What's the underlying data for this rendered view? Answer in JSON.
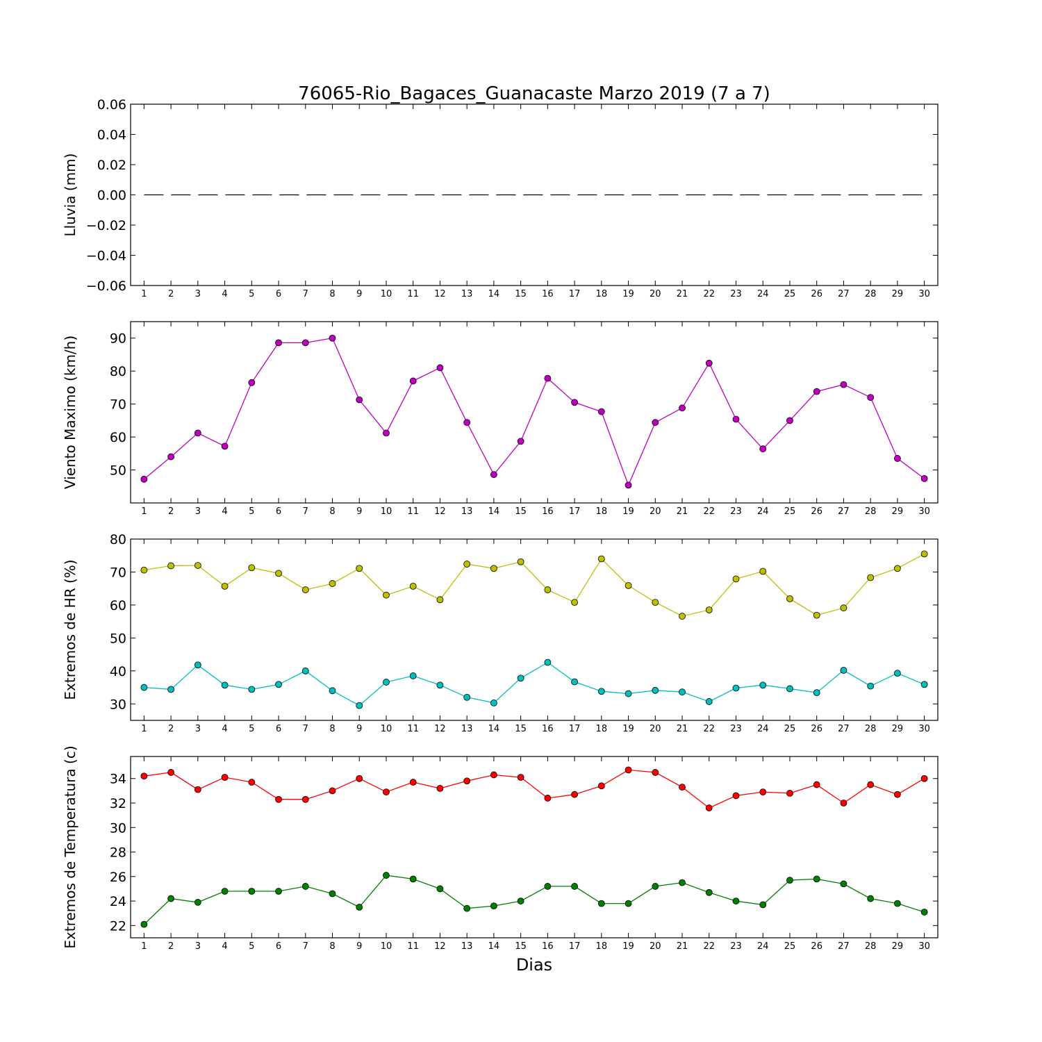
{
  "figure": {
    "title": "76065-Rio_Bagaces_Guanacaste Marzo 2019  (7 a 7)",
    "xlabel": "Dias"
  },
  "chart_data": [
    {
      "type": "line",
      "ylabel": "Lluvia (mm)",
      "x": [
        1,
        2,
        3,
        4,
        5,
        6,
        7,
        8,
        9,
        10,
        11,
        12,
        13,
        14,
        15,
        16,
        17,
        18,
        19,
        20,
        21,
        22,
        23,
        24,
        25,
        26,
        27,
        28,
        29,
        30
      ],
      "xlim": [
        0.5,
        30.5
      ],
      "ylim": [
        -0.06,
        0.06
      ],
      "yticks": [
        -0.06,
        -0.04,
        -0.02,
        0.0,
        0.02,
        0.04,
        0.06
      ],
      "ytick_labels": [
        "−0.06",
        "−0.04",
        "−0.02",
        "0.00",
        "0.02",
        "0.04",
        "0.06"
      ],
      "series": [
        {
          "color": "#000000",
          "style": "dashed",
          "marker": false,
          "values": [
            0,
            0,
            0,
            0,
            0,
            0,
            0,
            0,
            0,
            0,
            0,
            0,
            0,
            0,
            0,
            0,
            0,
            0,
            0,
            0,
            0,
            0,
            0,
            0,
            0,
            0,
            0,
            0,
            0,
            0
          ]
        }
      ]
    },
    {
      "type": "line",
      "ylabel": "Viento Maximo (km/h)",
      "x": [
        1,
        2,
        3,
        4,
        5,
        6,
        7,
        8,
        9,
        10,
        11,
        12,
        13,
        14,
        15,
        16,
        17,
        18,
        19,
        20,
        21,
        22,
        23,
        24,
        25,
        26,
        27,
        28,
        29,
        30
      ],
      "xlim": [
        0.5,
        30.5
      ],
      "ylim": [
        40,
        95
      ],
      "yticks": [
        50,
        60,
        70,
        80,
        90
      ],
      "ytick_labels": [
        "50",
        "60",
        "70",
        "80",
        "90"
      ],
      "series": [
        {
          "color": "#bf00bf",
          "style": "solid",
          "marker": true,
          "values": [
            47.2,
            54.0,
            61.2,
            57.2,
            76.5,
            88.6,
            88.6,
            90.0,
            71.3,
            61.2,
            77.0,
            81.0,
            64.4,
            48.6,
            58.7,
            77.8,
            70.5,
            67.7,
            45.4,
            64.4,
            68.8,
            82.4,
            65.4,
            56.4,
            65.0,
            73.8,
            75.9,
            72.0,
            53.5,
            47.4
          ]
        }
      ]
    },
    {
      "type": "line",
      "ylabel": "Extremos de HR (%)",
      "x": [
        1,
        2,
        3,
        4,
        5,
        6,
        7,
        8,
        9,
        10,
        11,
        12,
        13,
        14,
        15,
        16,
        17,
        18,
        19,
        20,
        21,
        22,
        23,
        24,
        25,
        26,
        27,
        28,
        29,
        30
      ],
      "xlim": [
        0.5,
        30.5
      ],
      "ylim": [
        25,
        80
      ],
      "yticks": [
        30,
        40,
        50,
        60,
        70,
        80
      ],
      "ytick_labels": [
        "30",
        "40",
        "50",
        "60",
        "70",
        "80"
      ],
      "series": [
        {
          "color": "#bfbf00",
          "style": "solid",
          "marker": true,
          "values": [
            70.6,
            71.9,
            72.0,
            65.7,
            71.3,
            69.6,
            64.6,
            66.5,
            71.1,
            63.0,
            65.7,
            61.6,
            72.4,
            71.1,
            73.1,
            64.6,
            60.8,
            74.0,
            65.9,
            60.8,
            56.6,
            58.5,
            67.9,
            70.2,
            61.9,
            56.9,
            59.1,
            68.3,
            71.1,
            75.5
          ]
        },
        {
          "color": "#00bfbf",
          "style": "solid",
          "marker": true,
          "values": [
            35.0,
            34.4,
            41.8,
            35.7,
            34.4,
            35.9,
            40.0,
            34.0,
            29.5,
            36.6,
            38.5,
            35.7,
            32.0,
            30.3,
            37.8,
            42.6,
            36.7,
            33.8,
            33.1,
            34.1,
            33.6,
            30.7,
            34.8,
            35.7,
            34.6,
            33.4,
            40.2,
            35.4,
            39.3,
            35.9
          ]
        }
      ]
    },
    {
      "type": "line",
      "ylabel": "Extremos de Temperatura (c)",
      "x": [
        1,
        2,
        3,
        4,
        5,
        6,
        7,
        8,
        9,
        10,
        11,
        12,
        13,
        14,
        15,
        16,
        17,
        18,
        19,
        20,
        21,
        22,
        23,
        24,
        25,
        26,
        27,
        28,
        29,
        30
      ],
      "xlim": [
        0.5,
        30.5
      ],
      "ylim": [
        21,
        35.8
      ],
      "yticks": [
        22,
        24,
        26,
        28,
        30,
        32,
        34
      ],
      "ytick_labels": [
        "22",
        "24",
        "26",
        "28",
        "30",
        "32",
        "34"
      ],
      "series": [
        {
          "color": "#ff0000",
          "style": "solid",
          "marker": true,
          "values": [
            34.2,
            34.5,
            33.1,
            34.1,
            33.7,
            32.3,
            32.3,
            33.0,
            34.0,
            32.9,
            33.7,
            33.2,
            33.8,
            34.3,
            34.1,
            32.4,
            32.7,
            33.4,
            34.7,
            34.5,
            33.3,
            31.6,
            32.6,
            32.9,
            32.8,
            33.5,
            32.0,
            33.5,
            32.7,
            34.0
          ]
        },
        {
          "color": "#008000",
          "style": "solid",
          "marker": true,
          "values": [
            22.1,
            24.2,
            23.9,
            24.8,
            24.8,
            24.8,
            25.2,
            24.6,
            23.5,
            26.1,
            25.8,
            25.0,
            23.4,
            23.6,
            24.0,
            25.2,
            25.2,
            23.8,
            23.8,
            25.2,
            25.5,
            24.7,
            24.0,
            23.7,
            25.7,
            25.8,
            25.4,
            24.2,
            23.8,
            23.1
          ]
        }
      ]
    }
  ]
}
